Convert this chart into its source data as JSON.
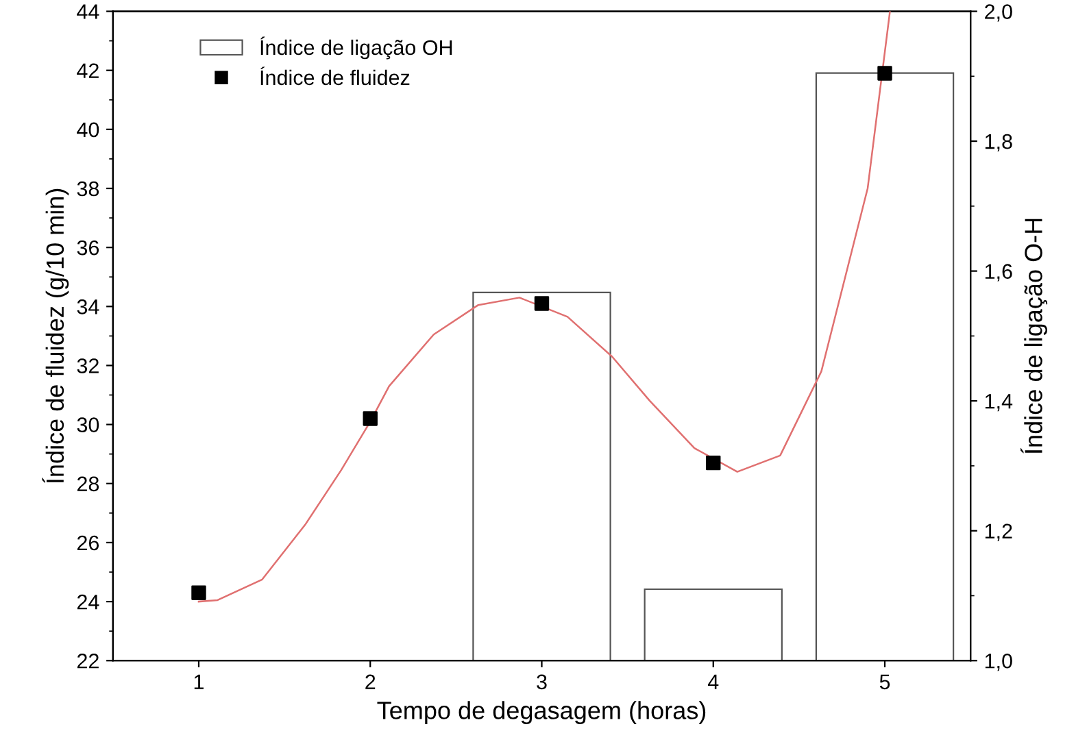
{
  "chart_data": {
    "type": "scatter",
    "xlabel": "Tempo de degasagem (horas)",
    "ylabel": "Índice de fluidez (g/10 min)",
    "y2label": "Índice de ligação O-H",
    "xlim": [
      0.5,
      5.5
    ],
    "xticks": [
      1,
      2,
      3,
      4,
      5
    ],
    "ylim": [
      22,
      44
    ],
    "yticks": [
      22,
      24,
      26,
      28,
      30,
      32,
      34,
      36,
      38,
      40,
      42,
      44
    ],
    "y2lim": [
      1.0,
      2.0
    ],
    "y2ticks": [
      {
        "value": 1.0,
        "label": "1,0"
      },
      {
        "value": 1.2,
        "label": "1,2"
      },
      {
        "value": 1.4,
        "label": "1,4"
      },
      {
        "value": 1.6,
        "label": "1,6"
      },
      {
        "value": 1.8,
        "label": "1,8"
      },
      {
        "value": 2.0,
        "label": "2,0"
      }
    ],
    "legend": "top left",
    "grid": false,
    "series": [
      {
        "type": "bar",
        "axis": "y2",
        "name": "Índice de ligação OH",
        "color": "#ffffff",
        "x": [
          3,
          4,
          5
        ],
        "values": [
          1.567,
          1.11,
          1.905
        ]
      },
      {
        "name": "Índice de fluidez",
        "color": "#000000",
        "marker": "square",
        "x": [
          1,
          2,
          3,
          4,
          5
        ],
        "values": [
          24.3,
          30.2,
          34.1,
          28.7,
          41.9
        ]
      },
      {
        "type": "line",
        "color": "#e07070",
        "x": [
          1,
          1.11,
          1.37,
          1.62,
          1.83,
          2,
          2.11,
          2.37,
          2.63,
          2.87,
          3.15,
          3.41,
          3.63,
          3.89,
          4.14,
          4.39,
          4.63,
          4.9,
          5.03
        ],
        "values": [
          24.0,
          24.05,
          24.75,
          26.6,
          28.45,
          30.1,
          31.3,
          33.05,
          34.05,
          34.3,
          33.65,
          32.3,
          30.8,
          29.2,
          28.4,
          28.95,
          31.8,
          38.0,
          44
        ]
      }
    ]
  }
}
